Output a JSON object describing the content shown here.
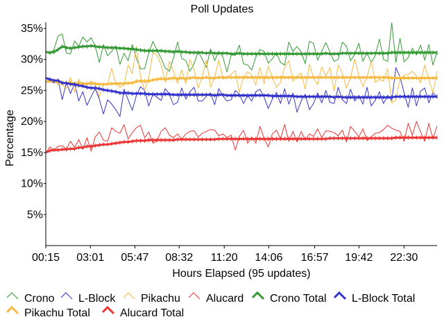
{
  "chart_data": {
    "type": "line",
    "title": "Poll Updates",
    "xlabel": "Hours Elapsed (95 updates)",
    "ylabel": "Percentage",
    "x_range_hours": [
      0.25,
      24.55
    ],
    "ylim": [
      0,
      36
    ],
    "y_ticks": [
      5,
      10,
      15,
      20,
      25,
      30,
      35
    ],
    "y_tick_labels": [
      "5%",
      "10%",
      "15%",
      "20%",
      "25%",
      "30%",
      "35%"
    ],
    "x_tick_hours": [
      0.25,
      3.017,
      5.783,
      8.533,
      11.333,
      14.1,
      16.95,
      19.7,
      22.5
    ],
    "x_tick_labels": [
      "00:15",
      "03:01",
      "05:47",
      "08:32",
      "11:20",
      "14:06",
      "16:57",
      "19:42",
      "22:30"
    ],
    "grid": false,
    "legend_position": "bottom",
    "series": [
      {
        "name": "Crono",
        "color": "#339933",
        "style": "thin",
        "values": [
          31.2,
          30.9,
          31.6,
          33.8,
          34.1,
          31.0,
          30.9,
          33.0,
          32.1,
          33.6,
          32.8,
          33.5,
          32.2,
          29.5,
          32.4,
          30.6,
          31.3,
          32.2,
          29.2,
          31.0,
          29.8,
          32.4,
          30.2,
          28.5,
          28.5,
          31.0,
          32.9,
          31.5,
          30.2,
          28.6,
          28.1,
          30.2,
          32.8,
          30.2,
          29.8,
          28.1,
          29.3,
          31.3,
          30.0,
          28.7,
          31.7,
          29.8,
          31.3,
          30.4,
          28.0,
          30.7,
          30.7,
          32.3,
          29.3,
          29.1,
          28.3,
          30.4,
          31.6,
          31.3,
          29.4,
          30.1,
          31.0,
          29.5,
          29.1,
          32.8,
          31.3,
          32.1,
          31.2,
          29.3,
          32.9,
          32.6,
          29.9,
          31.3,
          32.7,
          31.2,
          29.7,
          30.0,
          32.8,
          32.1,
          29.8,
          30.8,
          32.6,
          29.7,
          31.1,
          29.5,
          30.6,
          33.3,
          30.0,
          29.7,
          35.9,
          29.5,
          33.4,
          29.6,
          30.3,
          31.8,
          30.7,
          32.3,
          29.9,
          32.4,
          29.1,
          31.2
        ]
      },
      {
        "name": "L-Block",
        "color": "#3333cc",
        "style": "thin",
        "values": [
          27.0,
          26.5,
          26.2,
          26.8,
          23.5,
          26.3,
          24.5,
          26.2,
          23.3,
          24.8,
          22.6,
          24.0,
          25.3,
          23.6,
          21.2,
          23.5,
          22.8,
          21.9,
          20.8,
          25.2,
          23.5,
          21.8,
          24.2,
          25.6,
          25.0,
          22.5,
          24.4,
          23.9,
          23.4,
          25.3,
          24.4,
          22.7,
          23.1,
          25.4,
          23.6,
          24.8,
          25.5,
          23.3,
          23.3,
          24.1,
          24.6,
          22.7,
          25.3,
          24.1,
          23.3,
          23.5,
          25.0,
          24.4,
          22.9,
          24.2,
          23.3,
          24.8,
          25.2,
          23.9,
          22.1,
          23.6,
          24.7,
          22.9,
          25.3,
          22.8,
          24.6,
          21.5,
          23.3,
          24.4,
          21.9,
          22.9,
          24.6,
          23.0,
          25.0,
          23.1,
          22.9,
          25.5,
          23.5,
          22.9,
          25.2,
          23.3,
          24.2,
          22.8,
          25.5,
          22.5,
          23.4,
          24.8,
          22.9,
          24.2,
          23.3,
          28.7,
          27.2,
          24.6,
          22.3,
          25.4,
          22.5,
          24.9,
          25.4,
          23.0,
          24.7,
          23.8
        ]
      },
      {
        "name": "Pikachu",
        "color": "#f5b942",
        "style": "thin",
        "values": [
          26.4,
          26.7,
          26.5,
          25.9,
          26.0,
          25.3,
          27.1,
          24.7,
          26.8,
          25.6,
          26.0,
          26.5,
          26.1,
          23.9,
          26.1,
          25.9,
          28.6,
          26.1,
          25.5,
          25.9,
          29.1,
          27.7,
          32.1,
          27.3,
          25.0,
          27.1,
          31.1,
          30.7,
          29.1,
          26.3,
          29.7,
          28.1,
          26.1,
          28.3,
          26.1,
          30.0,
          28.4,
          25.4,
          27.3,
          29.9,
          25.5,
          27.1,
          29.9,
          26.8,
          27.1,
          27.6,
          28.2,
          24.7,
          27.1,
          28.0,
          27.5,
          25.9,
          28.7,
          26.1,
          28.9,
          27.1,
          25.5,
          26.3,
          28.7,
          29.8,
          26.5,
          27.2,
          27.8,
          25.2,
          29.2,
          27.1,
          25.9,
          28.8,
          27.3,
          28.7,
          24.9,
          29.1,
          27.8,
          25.4,
          27.0,
          30.1,
          27.4,
          25.6,
          27.2,
          29.8,
          26.3,
          26.8,
          26.5,
          28.5,
          23.0,
          23.4,
          26.9,
          27.4,
          27.6,
          28.1,
          27.3,
          26.2,
          29.1,
          26.8,
          24.6,
          28.1
        ]
      },
      {
        "name": "Alucard",
        "color": "#ee3333",
        "style": "thin",
        "values": [
          14.9,
          15.9,
          15.4,
          16.0,
          16.1,
          15.6,
          16.8,
          15.8,
          17.1,
          15.5,
          17.4,
          15.2,
          17.5,
          18.3,
          17.0,
          16.8,
          19.0,
          18.4,
          18.1,
          19.5,
          17.2,
          18.2,
          19.0,
          19.4,
          17.4,
          18.3,
          16.5,
          16.9,
          18.4,
          19.0,
          17.8,
          17.4,
          18.0,
          17.1,
          18.0,
          18.4,
          18.5,
          17.5,
          18.1,
          18.4,
          18.7,
          18.6,
          17.7,
          18.0,
          17.4,
          17.8,
          15.4,
          17.6,
          18.6,
          16.5,
          17.5,
          16.5,
          19.2,
          17.3,
          15.9,
          18.0,
          18.6,
          17.2,
          19.5,
          16.8,
          18.4,
          16.7,
          18.4,
          17.0,
          18.0,
          17.6,
          18.8,
          17.4,
          18.5,
          18.4,
          18.2,
          17.7,
          18.6,
          16.7,
          19.2,
          18.4,
          17.5,
          18.8,
          16.9,
          17.5,
          18.1,
          18.2,
          18.7,
          19.4,
          18.9,
          18.6,
          18.4,
          16.8,
          19.7,
          17.8,
          20.0,
          18.3,
          16.8,
          19.7,
          17.2,
          19.3
        ]
      },
      {
        "name": "Crono Total",
        "color": "#339933",
        "style": "thick",
        "values": [
          31.2,
          31.1,
          31.2,
          31.6,
          32.1,
          31.9,
          31.8,
          31.9,
          32.0,
          32.1,
          32.1,
          32.2,
          32.1,
          32.0,
          32.0,
          31.9,
          31.9,
          31.9,
          31.8,
          31.8,
          31.7,
          31.7,
          31.6,
          31.5,
          31.4,
          31.4,
          31.4,
          31.4,
          31.4,
          31.3,
          31.3,
          31.2,
          31.3,
          31.2,
          31.2,
          31.1,
          31.1,
          31.1,
          31.1,
          31.0,
          31.1,
          31.0,
          31.0,
          31.0,
          31.0,
          30.9,
          30.9,
          31.0,
          30.9,
          30.9,
          30.9,
          30.9,
          30.9,
          30.9,
          30.9,
          30.9,
          30.9,
          30.9,
          30.9,
          30.9,
          30.9,
          30.9,
          30.9,
          30.9,
          30.9,
          30.9,
          30.9,
          30.9,
          31.0,
          30.9,
          30.9,
          30.9,
          31.0,
          31.0,
          31.0,
          31.0,
          31.0,
          31.0,
          31.0,
          31.0,
          31.0,
          31.0,
          31.0,
          31.0,
          31.1,
          31.1,
          31.1,
          31.1,
          31.1,
          31.1,
          31.1,
          31.1,
          31.1,
          31.1,
          31.1,
          31.1
        ]
      },
      {
        "name": "L-Block Total",
        "color": "#3333cc",
        "style": "thick",
        "values": [
          27.0,
          26.8,
          26.6,
          26.6,
          26.2,
          26.2,
          26.0,
          26.0,
          25.8,
          25.7,
          25.5,
          25.4,
          25.4,
          25.3,
          25.1,
          25.0,
          24.9,
          24.8,
          24.6,
          24.6,
          24.6,
          24.5,
          24.5,
          24.5,
          24.5,
          24.4,
          24.4,
          24.4,
          24.4,
          24.4,
          24.4,
          24.3,
          24.3,
          24.3,
          24.3,
          24.3,
          24.3,
          24.3,
          24.3,
          24.3,
          24.3,
          24.2,
          24.3,
          24.3,
          24.2,
          24.2,
          24.2,
          24.2,
          24.2,
          24.2,
          24.2,
          24.2,
          24.2,
          24.2,
          24.2,
          24.1,
          24.1,
          24.1,
          24.1,
          24.1,
          24.1,
          24.0,
          24.0,
          24.0,
          24.0,
          24.0,
          24.0,
          24.0,
          24.0,
          24.0,
          23.9,
          24.0,
          23.9,
          23.9,
          23.9,
          23.9,
          23.9,
          23.9,
          23.9,
          23.9,
          23.9,
          23.9,
          23.9,
          23.9,
          23.9,
          24.0,
          24.0,
          24.0,
          24.0,
          24.0,
          24.0,
          24.0,
          24.0,
          24.0,
          24.0,
          24.0
        ]
      },
      {
        "name": "Pikachu Total",
        "color": "#f5b942",
        "style": "thick",
        "values": [
          26.4,
          26.5,
          26.5,
          26.4,
          26.3,
          26.2,
          26.3,
          26.1,
          26.2,
          26.1,
          26.1,
          26.1,
          26.1,
          26.0,
          26.0,
          26.0,
          26.1,
          26.1,
          26.1,
          26.1,
          26.2,
          26.2,
          26.5,
          26.5,
          26.5,
          26.5,
          26.7,
          26.8,
          26.9,
          26.8,
          26.9,
          27.0,
          26.9,
          27.0,
          26.9,
          27.0,
          27.1,
          27.0,
          27.0,
          27.1,
          27.0,
          27.0,
          27.1,
          27.1,
          27.1,
          27.1,
          27.1,
          27.1,
          27.1,
          27.1,
          27.1,
          27.1,
          27.1,
          27.1,
          27.1,
          27.1,
          27.1,
          27.1,
          27.1,
          27.1,
          27.1,
          27.1,
          27.1,
          27.1,
          27.1,
          27.1,
          27.1,
          27.1,
          27.1,
          27.1,
          27.1,
          27.1,
          27.1,
          27.1,
          27.1,
          27.1,
          27.1,
          27.1,
          27.1,
          27.1,
          27.1,
          27.1,
          27.1,
          27.1,
          27.0,
          27.0,
          27.0,
          27.0,
          27.0,
          27.0,
          27.0,
          27.0,
          27.0,
          27.0,
          27.0,
          27.0
        ]
      },
      {
        "name": "Alucard Total",
        "color": "#ee3333",
        "style": "thick",
        "values": [
          15.0,
          15.3,
          15.4,
          15.4,
          15.5,
          15.5,
          15.6,
          15.6,
          15.8,
          15.8,
          16.0,
          16.0,
          16.1,
          16.2,
          16.3,
          16.3,
          16.4,
          16.5,
          16.6,
          16.7,
          16.7,
          16.8,
          16.9,
          16.9,
          16.9,
          17.0,
          17.0,
          17.0,
          17.0,
          17.0,
          17.0,
          17.0,
          17.1,
          17.1,
          17.1,
          17.1,
          17.1,
          17.1,
          17.1,
          17.1,
          17.1,
          17.1,
          17.2,
          17.2,
          17.2,
          17.2,
          17.2,
          17.2,
          17.2,
          17.2,
          17.2,
          17.2,
          17.2,
          17.2,
          17.2,
          17.2,
          17.2,
          17.2,
          17.2,
          17.2,
          17.2,
          17.2,
          17.2,
          17.2,
          17.2,
          17.2,
          17.2,
          17.2,
          17.2,
          17.3,
          17.3,
          17.3,
          17.3,
          17.3,
          17.3,
          17.3,
          17.3,
          17.3,
          17.3,
          17.3,
          17.3,
          17.3,
          17.3,
          17.3,
          17.3,
          17.4,
          17.4,
          17.4,
          17.4,
          17.4,
          17.4,
          17.4,
          17.4,
          17.4,
          17.4,
          17.4
        ]
      }
    ]
  }
}
